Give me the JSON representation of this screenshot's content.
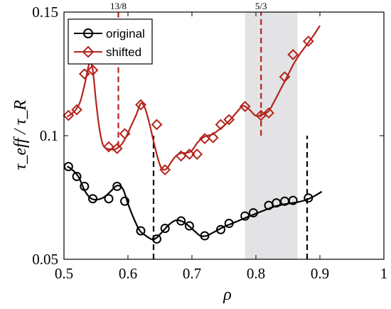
{
  "chart_data": {
    "type": "line",
    "xlabel": "ρ",
    "ylabel": "τ_eff / τ_R",
    "xlim": [
      0.5,
      1.0
    ],
    "ylim": [
      0.05,
      0.15
    ],
    "x_ticks": [
      0.5,
      0.6,
      0.7,
      0.8,
      0.9,
      1.0
    ],
    "x_tick_labels": [
      "0.5",
      "0.6",
      "0.7",
      "0.8",
      "0.9",
      "1"
    ],
    "y_ticks": [
      0.05,
      0.1,
      0.15
    ],
    "y_tick_labels": [
      "0.05",
      "0.1",
      "0.15"
    ],
    "grid": false,
    "legend_position": "top-left",
    "shaded_region": {
      "x": [
        0.783,
        0.865
      ],
      "color": "#e3e3e5"
    },
    "annotations": [
      {
        "text": "13/8",
        "x": 0.585
      },
      {
        "text": "5/3",
        "x": 0.808
      }
    ],
    "vertical_markers": [
      {
        "series": "shifted",
        "x": 0.585,
        "y_from": 0.0955,
        "y_to": 0.15
      },
      {
        "series": "shifted",
        "x": 0.808,
        "y_from": 0.1,
        "y_to": 0.15
      },
      {
        "series": "original",
        "x": 0.64,
        "y_from": 0.05,
        "y_to": 0.1
      },
      {
        "series": "original",
        "x": 0.88,
        "y_from": 0.05,
        "y_to": 0.1
      }
    ],
    "series": [
      {
        "name": "original",
        "color": "#000000",
        "marker": "circle",
        "curve": {
          "x": [
            0.505,
            0.513,
            0.523,
            0.533,
            0.543,
            0.553,
            0.563,
            0.573,
            0.583,
            0.592,
            0.6,
            0.608,
            0.618,
            0.628,
            0.638,
            0.645,
            0.655,
            0.665,
            0.675,
            0.685,
            0.695,
            0.705,
            0.713,
            0.723,
            0.733,
            0.743,
            0.753,
            0.763,
            0.773,
            0.783,
            0.793,
            0.803,
            0.813,
            0.823,
            0.833,
            0.843,
            0.853,
            0.863,
            0.873,
            0.883,
            0.893,
            0.903
          ],
          "y": [
            0.0876,
            0.0862,
            0.0832,
            0.0775,
            0.0745,
            0.0742,
            0.0752,
            0.0775,
            0.0798,
            0.0785,
            0.0725,
            0.0672,
            0.0618,
            0.0595,
            0.058,
            0.0588,
            0.0615,
            0.0642,
            0.0658,
            0.0653,
            0.0635,
            0.0612,
            0.0595,
            0.0595,
            0.0608,
            0.0622,
            0.0635,
            0.0645,
            0.0656,
            0.0667,
            0.0677,
            0.0688,
            0.0698,
            0.0708,
            0.0716,
            0.0722,
            0.0726,
            0.073,
            0.0736,
            0.0745,
            0.0758,
            0.0774
          ]
        },
        "markers": {
          "x": [
            0.507,
            0.52,
            0.532,
            0.545,
            0.57,
            0.583,
            0.595,
            0.62,
            0.645,
            0.658,
            0.683,
            0.696,
            0.72,
            0.745,
            0.758,
            0.783,
            0.796,
            0.82,
            0.832,
            0.845,
            0.858,
            0.882
          ],
          "y": [
            0.0875,
            0.0835,
            0.0795,
            0.0745,
            0.0745,
            0.0795,
            0.0735,
            0.0615,
            0.0582,
            0.0625,
            0.0655,
            0.0635,
            0.0595,
            0.062,
            0.0645,
            0.0675,
            0.0688,
            0.0718,
            0.0728,
            0.0735,
            0.0738,
            0.0748
          ]
        }
      },
      {
        "name": "shifted",
        "color": "#b3241c",
        "marker": "diamond",
        "curve": {
          "x": [
            0.505,
            0.515,
            0.525,
            0.533,
            0.54,
            0.545,
            0.55,
            0.555,
            0.56,
            0.565,
            0.572,
            0.58,
            0.59,
            0.598,
            0.605,
            0.613,
            0.62,
            0.626,
            0.632,
            0.638,
            0.645,
            0.652,
            0.66,
            0.668,
            0.676,
            0.684,
            0.692,
            0.7,
            0.708,
            0.716,
            0.724,
            0.732,
            0.74,
            0.75,
            0.76,
            0.77,
            0.78,
            0.79,
            0.8,
            0.81,
            0.82,
            0.83,
            0.84,
            0.85,
            0.86,
            0.87,
            0.88,
            0.89,
            0.9
          ],
          "y": [
            0.1077,
            0.1095,
            0.1135,
            0.1215,
            0.1295,
            0.1265,
            0.114,
            0.1035,
            0.097,
            0.095,
            0.0945,
            0.0945,
            0.0965,
            0.1,
            0.104,
            0.1085,
            0.113,
            0.1115,
            0.1065,
            0.1,
            0.0925,
            0.087,
            0.0865,
            0.0895,
            0.092,
            0.093,
            0.093,
            0.094,
            0.097,
            0.099,
            0.1,
            0.1005,
            0.102,
            0.104,
            0.1065,
            0.1095,
            0.112,
            0.1105,
            0.108,
            0.1085,
            0.11,
            0.1145,
            0.1195,
            0.1245,
            0.1295,
            0.1335,
            0.137,
            0.1405,
            0.1445
          ]
        },
        "markers": {
          "x": [
            0.507,
            0.52,
            0.532,
            0.545,
            0.57,
            0.583,
            0.595,
            0.62,
            0.645,
            0.658,
            0.683,
            0.696,
            0.708,
            0.72,
            0.733,
            0.745,
            0.758,
            0.783,
            0.808,
            0.82,
            0.845,
            0.858,
            0.882
          ],
          "y": [
            0.1082,
            0.1105,
            0.125,
            0.1265,
            0.0955,
            0.0948,
            0.1008,
            0.1125,
            0.1045,
            0.0862,
            0.0918,
            0.0925,
            0.0925,
            0.0988,
            0.0992,
            0.1045,
            0.1065,
            0.1118,
            0.1082,
            0.1092,
            0.1238,
            0.1328,
            0.1382
          ]
        }
      }
    ]
  }
}
